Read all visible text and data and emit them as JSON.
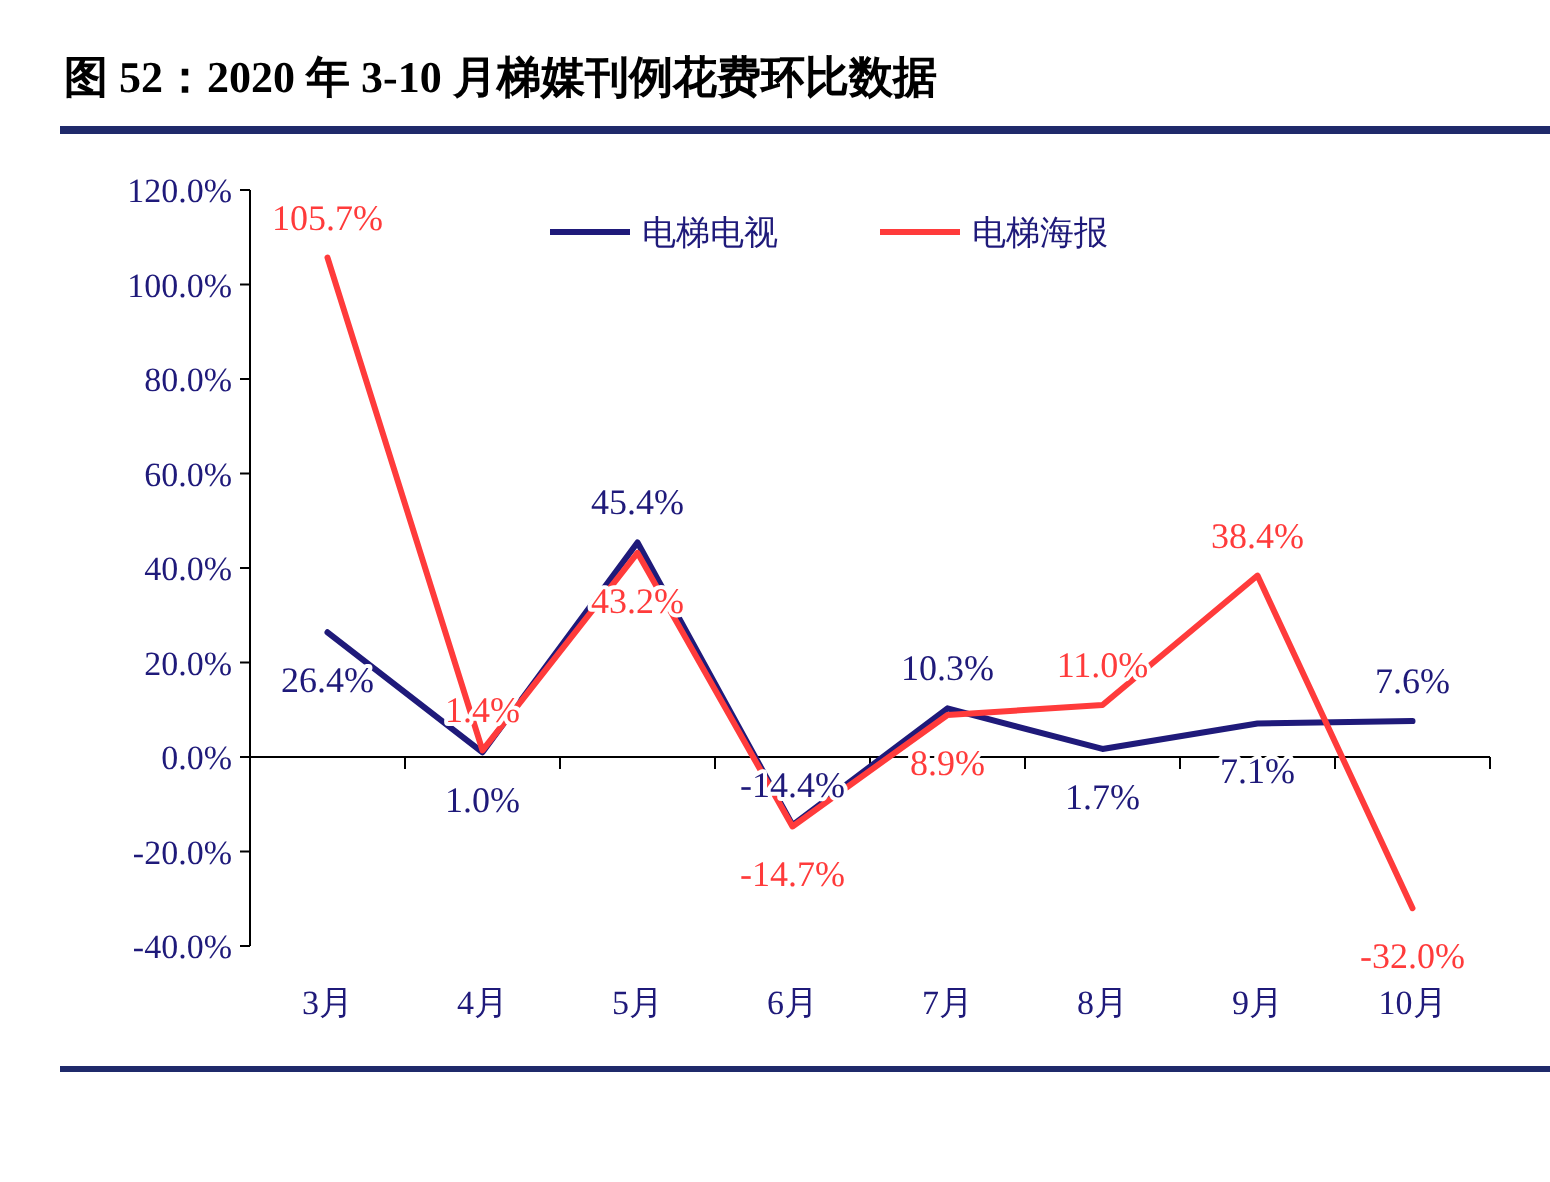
{
  "chart_data": {
    "type": "line",
    "title": "图 52：2020 年 3-10 月梯媒刊例花费环比数据",
    "categories": [
      "3月",
      "4月",
      "5月",
      "6月",
      "7月",
      "8月",
      "9月",
      "10月"
    ],
    "series": [
      {
        "name": "电梯电视",
        "color": "#1f1a7a",
        "values": [
          26.4,
          1.0,
          45.4,
          -14.4,
          10.3,
          1.7,
          7.1,
          7.6
        ],
        "value_labels": [
          "26.4%",
          "1.0%",
          "45.4%",
          "-14.4%",
          "10.3%",
          "1.7%",
          "7.1%",
          "7.6%"
        ]
      },
      {
        "name": "电梯海报",
        "color": "#ff3b3b",
        "values": [
          105.7,
          1.4,
          43.2,
          -14.7,
          8.9,
          11.0,
          38.4,
          -32.0
        ],
        "value_labels": [
          "105.7%",
          "1.4%",
          "43.2%",
          "-14.7%",
          "8.9%",
          "11.0%",
          "38.4%",
          "-32.0%"
        ]
      }
    ],
    "ylim": [
      -40,
      120
    ],
    "yticks": [
      {
        "value": -40,
        "label": "-40.0%"
      },
      {
        "value": -20,
        "label": "-20.0%"
      },
      {
        "value": 0,
        "label": "0.0%"
      },
      {
        "value": 20,
        "label": "20.0%"
      },
      {
        "value": 40,
        "label": "40.0%"
      },
      {
        "value": 60,
        "label": "60.0%"
      },
      {
        "value": 80,
        "label": "80.0%"
      },
      {
        "value": 100,
        "label": "100.0%"
      },
      {
        "value": 120,
        "label": "120.0%"
      }
    ],
    "legend": "top",
    "marker": "none",
    "line_style": "solid"
  }
}
